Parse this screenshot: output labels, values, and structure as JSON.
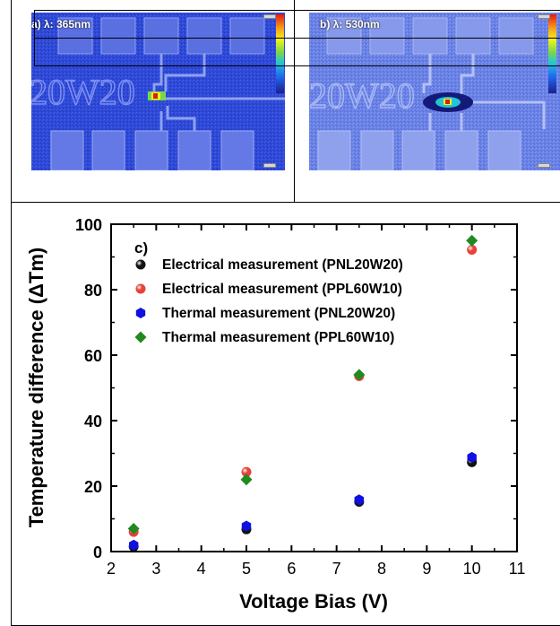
{
  "panels": {
    "a_label": "a) λ: 365nm",
    "b_label": "b) λ: 530nm",
    "a_watermark": "20W20",
    "b_watermark": "20W20"
  },
  "chart_data": {
    "type": "scatter",
    "panel_label": "c)",
    "xlabel": "Voltage Bias (V)",
    "ylabel": "Temperature difference (ΔTm)",
    "xlim": [
      2,
      11
    ],
    "ylim": [
      0,
      100
    ],
    "xticks": [
      2,
      3,
      4,
      5,
      6,
      7,
      8,
      9,
      10,
      11
    ],
    "yticks": [
      0,
      20,
      40,
      60,
      80,
      100
    ],
    "grid": false,
    "legend_position": "top-left",
    "series": [
      {
        "name": "Electrical measurement (PNL20W20)",
        "marker": "sphere",
        "color": "#111111",
        "x": [
          2.5,
          5,
          7.5,
          10
        ],
        "y": [
          1.5,
          6.8,
          15.2,
          27.3
        ]
      },
      {
        "name": "Electrical measurement (PPL60W10)",
        "marker": "sphere",
        "color": "#e8403a",
        "x": [
          2.5,
          5,
          7.5,
          10
        ],
        "y": [
          6.0,
          24.3,
          53.6,
          92.2
        ]
      },
      {
        "name": "Thermal measurement (PNL20W20)",
        "marker": "hexagon",
        "color": "#1010e0",
        "x": [
          2.5,
          5,
          7.5,
          10
        ],
        "y": [
          2.0,
          7.8,
          15.8,
          28.8
        ]
      },
      {
        "name": "Thermal measurement (PPL60W10)",
        "marker": "diamond",
        "color": "#1f8a1f",
        "x": [
          2.5,
          5,
          7.5,
          10
        ],
        "y": [
          7.0,
          22.0,
          54.0,
          95.0
        ]
      }
    ]
  }
}
